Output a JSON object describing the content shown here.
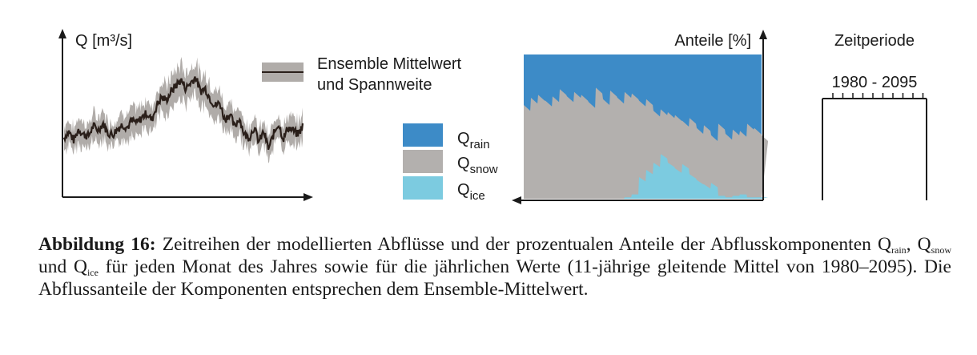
{
  "colors": {
    "rain": "#3d8bc7",
    "snow": "#b3b0ae",
    "ice": "#7ccbe0",
    "band": "#b0aca9",
    "line": "#2a1f1a"
  },
  "chart_data": [
    {
      "type": "line",
      "ylabel": "Q [m³/s]",
      "legend": {
        "line1": "Ensemble Mittelwert",
        "line2": "und Spannweite"
      },
      "series": [
        {
          "values": [
            0.38,
            0.42,
            0.36,
            0.44,
            0.4,
            0.39,
            0.46,
            0.43,
            0.48,
            0.41,
            0.4,
            0.44,
            0.47,
            0.45,
            0.5,
            0.48,
            0.52,
            0.55,
            0.5,
            0.6,
            0.66,
            0.64,
            0.7,
            0.74,
            0.78,
            0.72,
            0.76,
            0.8,
            0.7,
            0.72,
            0.65,
            0.6,
            0.62,
            0.5,
            0.55,
            0.45,
            0.52,
            0.4,
            0.38,
            0.45,
            0.35,
            0.42,
            0.3,
            0.4,
            0.48,
            0.37,
            0.45,
            0.43,
            0.4,
            0.46
          ],
          "band": 0.07
        }
      ]
    },
    {
      "type": "area",
      "ylabel": "Anteile [%]",
      "stacked": true,
      "series": [
        {
          "name": "Qrain",
          "label_main": "Q",
          "label_sub": "rain",
          "values": [
            0.39,
            0.34,
            0.32,
            0.36,
            0.33,
            0.28,
            0.33,
            0.3,
            0.32,
            0.37,
            0.27,
            0.35,
            0.29,
            0.34,
            0.3,
            0.31,
            0.36,
            0.35,
            0.43,
            0.42,
            0.44,
            0.46,
            0.5,
            0.48,
            0.55,
            0.53,
            0.6,
            0.52,
            0.59,
            0.56,
            0.57,
            0.52,
            0.55,
            0.6
          ]
        },
        {
          "name": "Qsnow",
          "label_main": "Q",
          "label_sub": "snow",
          "values": [
            0.61,
            0.66,
            0.68,
            0.64,
            0.67,
            0.72,
            0.67,
            0.7,
            0.68,
            0.63,
            0.73,
            0.65,
            0.71,
            0.66,
            0.69,
            0.66,
            0.52,
            0.48,
            0.35,
            0.3,
            0.34,
            0.36,
            0.29,
            0.38,
            0.35,
            0.4,
            0.32,
            0.46,
            0.4,
            0.42,
            0.4,
            0.47,
            0.44,
            0.39
          ]
        },
        {
          "name": "Qice",
          "label_main": "Q",
          "label_sub": "ice",
          "values": [
            0,
            0,
            0,
            0,
            0,
            0,
            0,
            0,
            0,
            0,
            0,
            0,
            0,
            0,
            0.01,
            0.03,
            0.12,
            0.17,
            0.22,
            0.28,
            0.22,
            0.18,
            0.21,
            0.14,
            0.1,
            0.07,
            0.08,
            0.02,
            0.01,
            0.02,
            0.03,
            0.01,
            0.01,
            0.01
          ]
        }
      ]
    },
    {
      "type": "timeline",
      "title": "Zeitperiode",
      "range_label": "1980 - 2095",
      "ticks": 10
    }
  ],
  "caption": {
    "bold": "Abbildung 16:",
    "p1": " Zeitreihen der modellierten Abflüsse und der prozentualen Anteile der Abflusskomponenten Q",
    "s1": "rain",
    "p2": ", Q",
    "s2": "snow",
    "p3": " und Q",
    "s3": "ice",
    "p4": " für jeden Monat des Jahres sowie für die jährlichen Werte (11-jährige gleitende Mittel von 1980–2095). Die Abflussanteile der Komponenten entsprechen dem Ensemble-Mittelwert."
  }
}
